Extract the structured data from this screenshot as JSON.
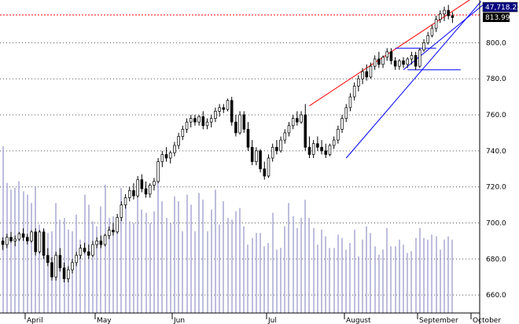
{
  "chart_data": {
    "type": "candlestick",
    "title": "",
    "xlabel": "",
    "ylabel": "",
    "ylim": [
      650,
      822
    ],
    "y_ticks": [
      "660.0",
      "680.0",
      "700.0",
      "720.0",
      "740.0",
      "760.0",
      "780.0",
      "800.0"
    ],
    "x_ticks": [
      "April",
      "May",
      "Jun",
      "Jul",
      "August",
      "September",
      "October"
    ],
    "last_price_label": "813.99",
    "volume_label": "47,718.22",
    "grid": true,
    "series": [
      {
        "kind": "ohlc",
        "points": [
          {
            "o": 690,
            "h": 692,
            "l": 685,
            "c": 688
          },
          {
            "o": 688,
            "h": 694,
            "l": 686,
            "c": 692
          },
          {
            "o": 692,
            "h": 695,
            "l": 689,
            "c": 690
          },
          {
            "o": 690,
            "h": 693,
            "l": 687,
            "c": 691
          },
          {
            "o": 691,
            "h": 695,
            "l": 690,
            "c": 694
          },
          {
            "o": 694,
            "h": 697,
            "l": 690,
            "c": 692
          },
          {
            "o": 692,
            "h": 694,
            "l": 688,
            "c": 690
          },
          {
            "o": 690,
            "h": 696,
            "l": 689,
            "c": 695
          },
          {
            "o": 695,
            "h": 697,
            "l": 682,
            "c": 684
          },
          {
            "o": 684,
            "h": 696,
            "l": 683,
            "c": 695
          },
          {
            "o": 695,
            "h": 697,
            "l": 680,
            "c": 682
          },
          {
            "o": 682,
            "h": 686,
            "l": 676,
            "c": 678
          },
          {
            "o": 678,
            "h": 681,
            "l": 668,
            "c": 670
          },
          {
            "o": 670,
            "h": 684,
            "l": 668,
            "c": 682
          },
          {
            "o": 682,
            "h": 686,
            "l": 673,
            "c": 675
          },
          {
            "o": 675,
            "h": 678,
            "l": 667,
            "c": 669
          },
          {
            "o": 669,
            "h": 676,
            "l": 667,
            "c": 674
          },
          {
            "o": 674,
            "h": 680,
            "l": 672,
            "c": 678
          },
          {
            "o": 678,
            "h": 684,
            "l": 676,
            "c": 682
          },
          {
            "o": 682,
            "h": 688,
            "l": 680,
            "c": 686
          },
          {
            "o": 686,
            "h": 689,
            "l": 683,
            "c": 684
          },
          {
            "o": 684,
            "h": 688,
            "l": 680,
            "c": 682
          },
          {
            "o": 682,
            "h": 690,
            "l": 681,
            "c": 688
          },
          {
            "o": 688,
            "h": 692,
            "l": 686,
            "c": 690
          },
          {
            "o": 690,
            "h": 693,
            "l": 686,
            "c": 688
          },
          {
            "o": 688,
            "h": 694,
            "l": 687,
            "c": 693
          },
          {
            "o": 693,
            "h": 698,
            "l": 691,
            "c": 696
          },
          {
            "o": 696,
            "h": 700,
            "l": 693,
            "c": 695
          },
          {
            "o": 695,
            "h": 705,
            "l": 694,
            "c": 703
          },
          {
            "o": 703,
            "h": 712,
            "l": 701,
            "c": 710
          },
          {
            "o": 710,
            "h": 716,
            "l": 708,
            "c": 714
          },
          {
            "o": 714,
            "h": 720,
            "l": 712,
            "c": 718
          },
          {
            "o": 718,
            "h": 722,
            "l": 713,
            "c": 715
          },
          {
            "o": 715,
            "h": 726,
            "l": 714,
            "c": 724
          },
          {
            "o": 724,
            "h": 727,
            "l": 717,
            "c": 719
          },
          {
            "o": 719,
            "h": 723,
            "l": 714,
            "c": 716
          },
          {
            "o": 716,
            "h": 722,
            "l": 714,
            "c": 721
          },
          {
            "o": 721,
            "h": 725,
            "l": 718,
            "c": 723
          },
          {
            "o": 723,
            "h": 736,
            "l": 722,
            "c": 734
          },
          {
            "o": 734,
            "h": 740,
            "l": 731,
            "c": 738
          },
          {
            "o": 738,
            "h": 742,
            "l": 734,
            "c": 736
          },
          {
            "o": 736,
            "h": 740,
            "l": 733,
            "c": 739
          },
          {
            "o": 739,
            "h": 745,
            "l": 737,
            "c": 743
          },
          {
            "o": 743,
            "h": 750,
            "l": 741,
            "c": 748
          },
          {
            "o": 748,
            "h": 754,
            "l": 746,
            "c": 752
          },
          {
            "o": 752,
            "h": 758,
            "l": 750,
            "c": 756
          },
          {
            "o": 756,
            "h": 760,
            "l": 753,
            "c": 758
          },
          {
            "o": 758,
            "h": 760,
            "l": 754,
            "c": 756
          },
          {
            "o": 756,
            "h": 760,
            "l": 754,
            "c": 759
          },
          {
            "o": 759,
            "h": 762,
            "l": 752,
            "c": 754
          },
          {
            "o": 754,
            "h": 758,
            "l": 752,
            "c": 756
          },
          {
            "o": 756,
            "h": 760,
            "l": 753,
            "c": 758
          },
          {
            "o": 758,
            "h": 764,
            "l": 756,
            "c": 762
          },
          {
            "o": 762,
            "h": 766,
            "l": 759,
            "c": 764
          },
          {
            "o": 764,
            "h": 766,
            "l": 761,
            "c": 763
          },
          {
            "o": 763,
            "h": 769,
            "l": 762,
            "c": 768
          },
          {
            "o": 768,
            "h": 770,
            "l": 754,
            "c": 756
          },
          {
            "o": 756,
            "h": 760,
            "l": 748,
            "c": 750
          },
          {
            "o": 750,
            "h": 762,
            "l": 749,
            "c": 760
          },
          {
            "o": 760,
            "h": 762,
            "l": 750,
            "c": 752
          },
          {
            "o": 752,
            "h": 756,
            "l": 740,
            "c": 742
          },
          {
            "o": 742,
            "h": 746,
            "l": 732,
            "c": 734
          },
          {
            "o": 734,
            "h": 742,
            "l": 732,
            "c": 740
          },
          {
            "o": 740,
            "h": 741,
            "l": 728,
            "c": 730
          },
          {
            "o": 730,
            "h": 734,
            "l": 724,
            "c": 726
          },
          {
            "o": 726,
            "h": 738,
            "l": 725,
            "c": 736
          },
          {
            "o": 736,
            "h": 744,
            "l": 734,
            "c": 742
          },
          {
            "o": 742,
            "h": 746,
            "l": 738,
            "c": 740
          },
          {
            "o": 740,
            "h": 748,
            "l": 739,
            "c": 746
          },
          {
            "o": 746,
            "h": 752,
            "l": 744,
            "c": 750
          },
          {
            "o": 750,
            "h": 756,
            "l": 748,
            "c": 754
          },
          {
            "o": 754,
            "h": 760,
            "l": 752,
            "c": 758
          },
          {
            "o": 758,
            "h": 762,
            "l": 754,
            "c": 756
          },
          {
            "o": 756,
            "h": 762,
            "l": 755,
            "c": 760
          },
          {
            "o": 760,
            "h": 766,
            "l": 740,
            "c": 742
          },
          {
            "o": 742,
            "h": 748,
            "l": 736,
            "c": 738
          },
          {
            "o": 738,
            "h": 746,
            "l": 736,
            "c": 744
          },
          {
            "o": 744,
            "h": 748,
            "l": 740,
            "c": 742
          },
          {
            "o": 742,
            "h": 746,
            "l": 738,
            "c": 740
          },
          {
            "o": 740,
            "h": 744,
            "l": 736,
            "c": 738
          },
          {
            "o": 738,
            "h": 744,
            "l": 737,
            "c": 743
          },
          {
            "o": 743,
            "h": 748,
            "l": 741,
            "c": 746
          },
          {
            "o": 746,
            "h": 754,
            "l": 744,
            "c": 752
          },
          {
            "o": 752,
            "h": 760,
            "l": 750,
            "c": 758
          },
          {
            "o": 758,
            "h": 766,
            "l": 756,
            "c": 764
          },
          {
            "o": 764,
            "h": 772,
            "l": 762,
            "c": 770
          },
          {
            "o": 770,
            "h": 778,
            "l": 768,
            "c": 776
          },
          {
            "o": 776,
            "h": 782,
            "l": 773,
            "c": 780
          },
          {
            "o": 780,
            "h": 786,
            "l": 777,
            "c": 784
          },
          {
            "o": 784,
            "h": 788,
            "l": 779,
            "c": 781
          },
          {
            "o": 781,
            "h": 789,
            "l": 780,
            "c": 787
          },
          {
            "o": 787,
            "h": 793,
            "l": 785,
            "c": 791
          },
          {
            "o": 791,
            "h": 795,
            "l": 786,
            "c": 788
          },
          {
            "o": 788,
            "h": 793,
            "l": 786,
            "c": 792
          },
          {
            "o": 792,
            "h": 797,
            "l": 790,
            "c": 795
          },
          {
            "o": 795,
            "h": 797,
            "l": 788,
            "c": 790
          },
          {
            "o": 790,
            "h": 792,
            "l": 785,
            "c": 787
          },
          {
            "o": 787,
            "h": 791,
            "l": 785,
            "c": 790
          },
          {
            "o": 790,
            "h": 792,
            "l": 786,
            "c": 788
          },
          {
            "o": 788,
            "h": 792,
            "l": 786,
            "c": 791
          },
          {
            "o": 791,
            "h": 795,
            "l": 788,
            "c": 793
          },
          {
            "o": 793,
            "h": 795,
            "l": 785,
            "c": 787
          },
          {
            "o": 787,
            "h": 797,
            "l": 786,
            "c": 796
          },
          {
            "o": 796,
            "h": 802,
            "l": 795,
            "c": 800
          },
          {
            "o": 800,
            "h": 806,
            "l": 799,
            "c": 804
          },
          {
            "o": 804,
            "h": 810,
            "l": 803,
            "c": 808
          },
          {
            "o": 808,
            "h": 815,
            "l": 806,
            "c": 813
          },
          {
            "o": 813,
            "h": 818,
            "l": 811,
            "c": 816
          },
          {
            "o": 816,
            "h": 820,
            "l": 812,
            "c": 818
          },
          {
            "o": 818,
            "h": 821,
            "l": 813,
            "c": 815
          },
          {
            "o": 815,
            "h": 817,
            "l": 811,
            "c": 814
          }
        ]
      },
      {
        "kind": "volume",
        "ylim": [
          0,
          100
        ],
        "values": [
          100,
          78,
          74,
          75,
          79,
          73,
          71,
          66,
          76,
          53,
          50,
          48,
          49,
          66,
          56,
          57,
          50,
          49,
          59,
          44,
          71,
          65,
          55,
          52,
          64,
          77,
          57,
          58,
          50,
          75,
          66,
          55,
          54,
          75,
          62,
          60,
          54,
          61,
          79,
          67,
          57,
          54,
          70,
          67,
          49,
          71,
          65,
          49,
          72,
          68,
          49,
          62,
          74,
          53,
          67,
          57,
          56,
          61,
          63,
          52,
          41,
          45,
          48,
          48,
          40,
          42,
          60,
          38,
          39,
          52,
          66,
          58,
          51,
          57,
          68,
          57,
          51,
          41,
          50,
          46,
          39,
          39,
          47,
          45,
          38,
          42,
          50,
          34,
          44,
          52,
          48,
          40,
          35,
          38,
          51,
          40,
          40,
          44,
          41,
          36,
          37,
          45,
          51,
          45,
          44,
          47,
          46,
          38,
          44,
          46,
          44
        ]
      }
    ],
    "trendlines": [
      {
        "name": "",
        "color": "#ff0000",
        "style": "solid",
        "from": [
          75,
          765
        ],
        "to": [
          117,
          828
        ]
      },
      {
        "name": "",
        "color": "#0000ff",
        "style": "solid",
        "from": [
          84,
          736
        ],
        "to": [
          117,
          823
        ]
      },
      {
        "name": "",
        "color": "#0000ff",
        "style": "solid",
        "from": [
          98,
          785
        ],
        "to": [
          118,
          822
        ]
      },
      {
        "name": "",
        "color": "#0000ff",
        "style": "solid",
        "from": [
          96,
          797
        ],
        "to": [
          106,
          797
        ]
      },
      {
        "name": "",
        "color": "#0000ff",
        "style": "solid",
        "from": [
          99,
          785
        ],
        "to": [
          112,
          785
        ]
      }
    ],
    "reference_line": {
      "value": 815,
      "color": "#ff0000",
      "style": "dotted"
    },
    "colors": {
      "up_fill": "#ffffff",
      "down_fill": "#000000",
      "candle_outline": "#000000",
      "volume": "#9a9acd",
      "grid": "#555555",
      "badge_bg": "#000080",
      "badge_border": "#000000",
      "badge_text": "#ffffff",
      "badge2_bg": "#000000"
    }
  }
}
